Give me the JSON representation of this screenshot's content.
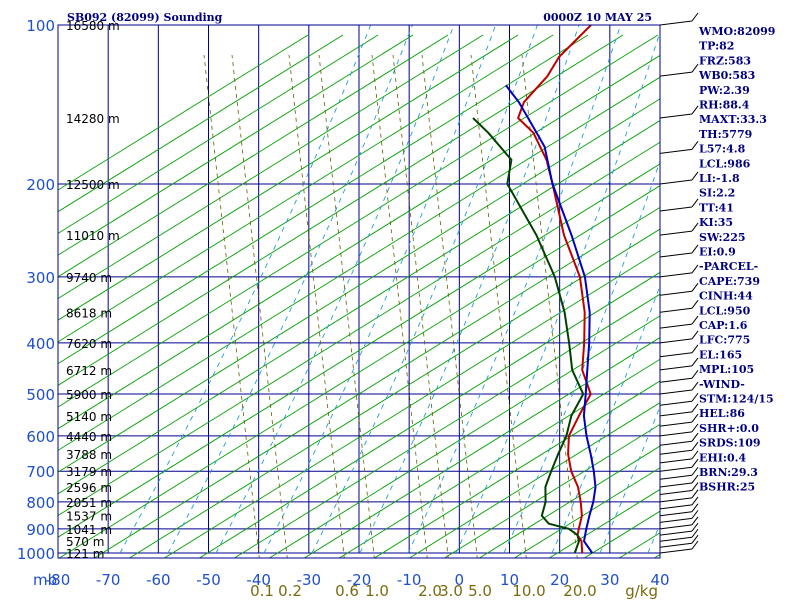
{
  "header": {
    "station": "SB092 (82099) Sounding",
    "time": "0000Z 10 MAY 25"
  },
  "axis": {
    "pressure_unit": "mb",
    "temperature_ticks": [
      "-80",
      "-70",
      "-60",
      "-50",
      "-40",
      "-30",
      "-20",
      "-10",
      "0",
      "10",
      "20",
      "30",
      "40"
    ],
    "mixing_ratio_labels": [
      "0.1",
      "0.2",
      "0.6",
      "1.0",
      "2.0",
      "3.0",
      "5.0",
      "10.0",
      "20.0"
    ],
    "mixing_ratio_unit": "g/kg"
  },
  "indices": [
    "WMO:82099",
    "TP:82",
    "FRZ:583",
    "WB0:583",
    "PW:2.39",
    "RH:88.4",
    "MAXT:33.3",
    "TH:5779",
    "L57:4.8",
    "LCL:986",
    "LI:-1.8",
    "SI:2.2",
    "TT:41",
    "KI:35",
    "SW:225",
    "EI:0.9",
    "-PARCEL-",
    "CAPE:739",
    "CINH:44",
    "LCL:950",
    "CAP:1.6",
    "LFC:775",
    "EL:165",
    "MPL:105",
    "-WIND-",
    "STM:124/15",
    "HEL:86",
    "SHR+:0.0",
    "SRDS:109",
    "EHI:0.4",
    "BRN:29.3",
    "BSHR:25"
  ],
  "colors": {
    "grid": "#000090",
    "dry_adiabat": "#00a000",
    "moist_adiabat": "#1e9ed0",
    "mixing_ratio": "#606000",
    "temperature": "#c00000",
    "dewpoint": "#004000",
    "parcel": "#0000c0",
    "labels": "#1f4fd0",
    "text": "#000080"
  },
  "chart_data": {
    "type": "line",
    "title": "SB092 (82099) Sounding",
    "xlabel": "",
    "ylabel": "mb",
    "scale": "skew-T log-p",
    "xlim": [
      -80,
      40
    ],
    "ylim": [
      1000,
      100
    ],
    "pressure_levels": [
      100,
      200,
      300,
      400,
      500,
      600,
      700,
      800,
      900,
      1000
    ],
    "heights": [
      {
        "p": 100,
        "h": "16580 m"
      },
      {
        "p": 150,
        "h": "14280 m"
      },
      {
        "p": 200,
        "h": "12500 m"
      },
      {
        "p": 250,
        "h": "11010 m"
      },
      {
        "p": 300,
        "h": "9740 m"
      },
      {
        "p": 350,
        "h": "8618 m"
      },
      {
        "p": 400,
        "h": "7620 m"
      },
      {
        "p": 450,
        "h": "6712 m"
      },
      {
        "p": 500,
        "h": "5900 m"
      },
      {
        "p": 550,
        "h": "5140 m"
      },
      {
        "p": 600,
        "h": "4440 m"
      },
      {
        "p": 650,
        "h": "3788 m"
      },
      {
        "p": 700,
        "h": "3179 m"
      },
      {
        "p": 750,
        "h": "2596 m"
      },
      {
        "p": 800,
        "h": "2051 m"
      },
      {
        "p": 850,
        "h": "1537 m"
      },
      {
        "p": 900,
        "h": "1041 m"
      },
      {
        "p": 950,
        "h": "570 m"
      },
      {
        "p": 1000,
        "h": "121 m"
      }
    ],
    "series": [
      {
        "key": "temperature",
        "points": [
          [
            1000,
            24.5
          ],
          [
            950,
            22
          ],
          [
            925,
            20
          ],
          [
            900,
            19
          ],
          [
            850,
            17
          ],
          [
            800,
            14
          ],
          [
            750,
            10.5
          ],
          [
            700,
            6
          ],
          [
            650,
            2
          ],
          [
            600,
            -1.5
          ],
          [
            550,
            -3.5
          ],
          [
            500,
            -5.5
          ],
          [
            450,
            -12
          ],
          [
            400,
            -17
          ],
          [
            350,
            -23
          ],
          [
            300,
            -31
          ],
          [
            250,
            -42.5
          ],
          [
            200,
            -55
          ],
          [
            180,
            -61
          ],
          [
            160,
            -69
          ],
          [
            150,
            -75
          ],
          [
            140,
            -77
          ],
          [
            125,
            -77.5
          ],
          [
            115,
            -79
          ],
          [
            100,
            -79
          ]
        ]
      },
      {
        "key": "dewpoint",
        "points": [
          [
            1000,
            23
          ],
          [
            950,
            21.5
          ],
          [
            925,
            20
          ],
          [
            900,
            17
          ],
          [
            880,
            12
          ],
          [
            850,
            9
          ],
          [
            800,
            7
          ],
          [
            750,
            4
          ],
          [
            700,
            2
          ],
          [
            650,
            0
          ],
          [
            600,
            -2
          ],
          [
            550,
            -5
          ],
          [
            500,
            -7
          ],
          [
            450,
            -14
          ],
          [
            400,
            -20
          ],
          [
            350,
            -27
          ],
          [
            300,
            -36
          ],
          [
            250,
            -48
          ],
          [
            200,
            -64
          ],
          [
            180,
            -68
          ],
          [
            160,
            -78
          ],
          [
            150,
            -84
          ]
        ]
      },
      {
        "key": "parcel",
        "points": [
          [
            1000,
            26.5
          ],
          [
            950,
            22.5
          ],
          [
            900,
            20.5
          ],
          [
            850,
            18.5
          ],
          [
            800,
            16.5
          ],
          [
            750,
            14
          ],
          [
            700,
            10.5
          ],
          [
            650,
            6.5
          ],
          [
            600,
            2
          ],
          [
            550,
            -2.5
          ],
          [
            500,
            -6.5
          ],
          [
            450,
            -11
          ],
          [
            400,
            -16
          ],
          [
            350,
            -22
          ],
          [
            300,
            -30
          ],
          [
            250,
            -41
          ],
          [
            200,
            -55
          ],
          [
            170,
            -64
          ],
          [
            150,
            -73
          ],
          [
            140,
            -78
          ],
          [
            130,
            -84
          ]
        ]
      }
    ]
  }
}
